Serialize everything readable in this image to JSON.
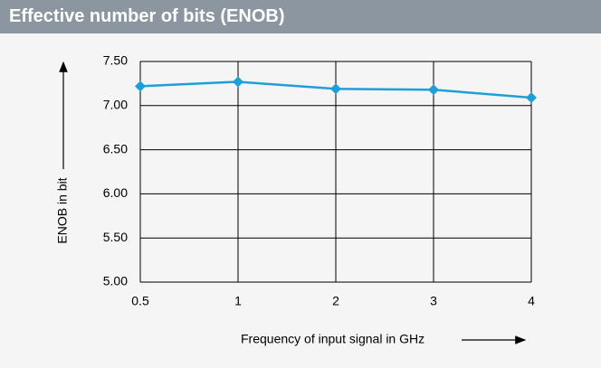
{
  "chart_data": {
    "type": "line",
    "title": "Effective number of bits (ENOB)",
    "x_label": "Frequency of input signal in GHz",
    "y_label": "ENOB in bit",
    "categories": [
      "0.5",
      "1",
      "2",
      "3",
      "4"
    ],
    "values": [
      7.22,
      7.27,
      7.19,
      7.18,
      7.09
    ],
    "color": "#1f9fd9",
    "ylim": [
      5,
      7.5
    ],
    "yticks": [
      {
        "value": 5,
        "label": "5.00"
      },
      {
        "value": 5.5,
        "label": "5.50"
      },
      {
        "value": 6,
        "label": "6.00"
      },
      {
        "value": 6.5,
        "label": "6.50"
      },
      {
        "value": 7,
        "label": "7.00"
      },
      {
        "value": 7.5,
        "label": "7.50"
      }
    ],
    "grid": true
  }
}
